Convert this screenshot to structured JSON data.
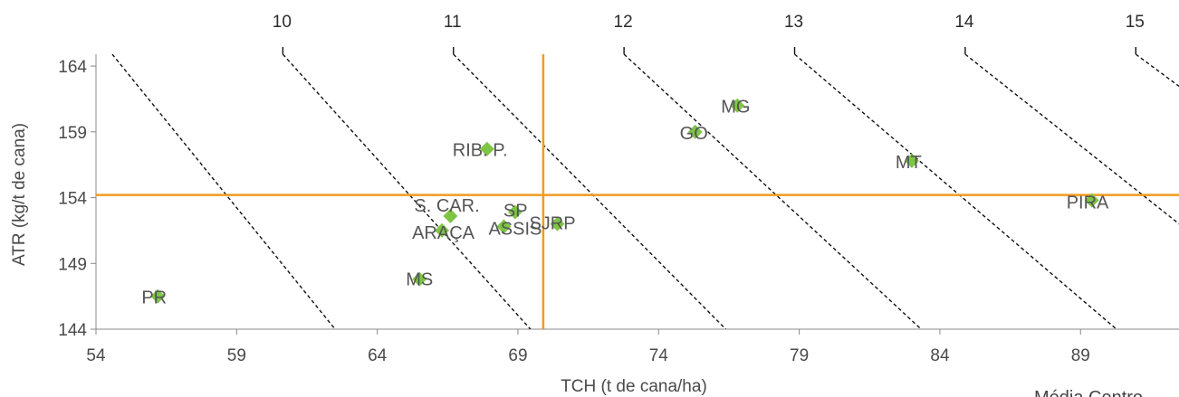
{
  "chart_data": {
    "type": "scatter",
    "title": "",
    "xlabel": "TCH (t de cana/ha)",
    "ylabel": "ATR (kg/t de cana)",
    "xlim": [
      54,
      92.5
    ],
    "ylim": [
      144,
      164.9
    ],
    "x_ticks": [
      54,
      59,
      64,
      69,
      74,
      79,
      84,
      89
    ],
    "y_ticks": [
      144,
      149,
      154,
      159,
      164
    ],
    "top_axis_ticks": [
      10,
      11,
      12,
      13,
      14,
      15
    ],
    "reference_lines": {
      "x": 69.9,
      "y": 154.2
    },
    "points": [
      {
        "label": "PR",
        "x": 56.2,
        "y": 146.5
      },
      {
        "label": "MS",
        "x": 65.5,
        "y": 147.8
      },
      {
        "label": "ARAÇA",
        "x": 66.3,
        "y": 151.5
      },
      {
        "label": "S. CAR.",
        "x": 66.6,
        "y": 152.6
      },
      {
        "label": "ASSIS",
        "x": 68.5,
        "y": 151.8
      },
      {
        "label": "SP",
        "x": 68.9,
        "y": 152.9
      },
      {
        "label": "SJRP",
        "x": 70.4,
        "y": 152.0
      },
      {
        "label": "RIB. P.",
        "x": 67.9,
        "y": 157.7
      },
      {
        "label": "GO",
        "x": 75.3,
        "y": 159.0
      },
      {
        "label": "MG",
        "x": 76.8,
        "y": 161.0
      },
      {
        "label": "MT",
        "x": 83.0,
        "y": 156.8
      },
      {
        "label": "PIRA",
        "x": 89.4,
        "y": 153.8
      }
    ],
    "grid": false,
    "legend": "none",
    "colors": {
      "marker": "#7ec544",
      "reference": "#f29a1d",
      "iso_lines": "#111111",
      "text": "#4a4a4a"
    }
  },
  "footer_note": "Média Centro"
}
